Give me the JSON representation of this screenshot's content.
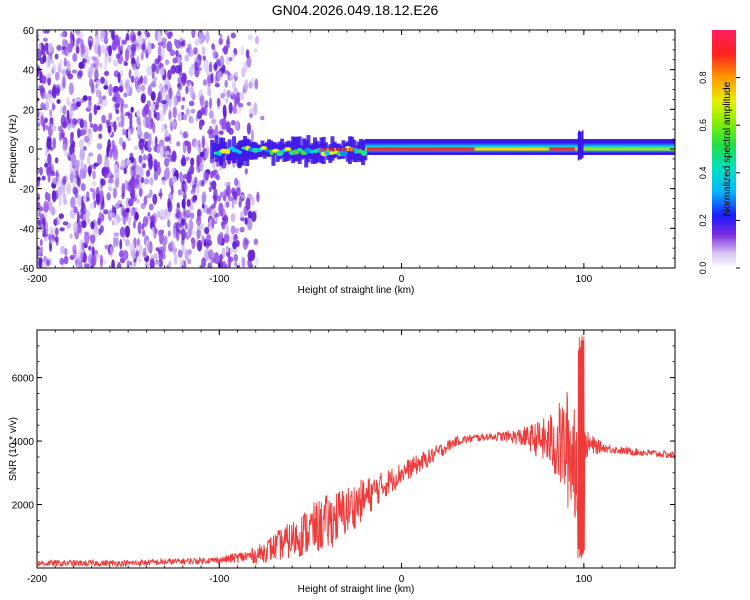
{
  "title": "GN04.2026.049.18.12.E26",
  "colors": {
    "snr_line": "#ef3a3a",
    "axis": "#000000",
    "background": "#ffffff"
  },
  "chart_data": [
    {
      "type": "heatmap",
      "name": "spectrogram",
      "xlabel": "Height of straight line (km)",
      "ylabel": "Frequency (Hz)",
      "xlim": [
        -200,
        150
      ],
      "ylim": [
        -60,
        60
      ],
      "xticks": [
        "-200",
        "-100",
        "0",
        "100"
      ],
      "xtick_values": [
        -200,
        -100,
        0,
        100
      ],
      "yticks": [
        "60",
        "40",
        "20",
        "0",
        "-20",
        "-40",
        "-60"
      ],
      "ytick_values": [
        60,
        40,
        20,
        0,
        -20,
        -40,
        -60
      ],
      "colorbar": {
        "label": "Normalized spectral amplitude",
        "range": [
          0,
          1
        ],
        "ticks": [
          "0.0",
          "0.2",
          "0.4",
          "0.6",
          "0.8"
        ],
        "tick_values": [
          0.0,
          0.2,
          0.4,
          0.6,
          0.8
        ]
      },
      "regions": [
        {
          "description_x": [
            -200,
            -75
          ],
          "frequency": [
            -60,
            60
          ],
          "amplitude": [
            0.0,
            0.15
          ],
          "kind": "noise"
        },
        {
          "description_x": [
            -105,
            -20
          ],
          "frequency": [
            -5,
            3
          ],
          "amplitude": [
            0.2,
            0.6
          ],
          "kind": "signal"
        },
        {
          "description_x": [
            -20,
            150
          ],
          "frequency": [
            -2,
            2
          ],
          "amplitude": [
            0.6,
            1.0
          ],
          "kind": "signal"
        }
      ]
    },
    {
      "type": "line",
      "name": "snr",
      "xlabel": "Height of straight line (km)",
      "ylabel": "SNR (10 * v/v)",
      "xlim": [
        -200,
        150
      ],
      "ylim": [
        0,
        7500
      ],
      "xticks": [
        "-200",
        "-100",
        "0",
        "100"
      ],
      "xtick_values": [
        -200,
        -100,
        0,
        100
      ],
      "yticks": [
        "2000",
        "4000",
        "6000"
      ],
      "ytick_values": [
        2000,
        4000,
        6000
      ],
      "series": [
        {
          "name": "SNR",
          "x": [
            -200,
            -150,
            -100,
            -80,
            -70,
            -60,
            -50,
            -40,
            -30,
            -20,
            -10,
            0,
            10,
            20,
            30,
            40,
            50,
            60,
            70,
            80,
            85,
            90,
            95,
            100,
            110,
            120,
            130,
            140,
            150
          ],
          "y": [
            150,
            150,
            250,
            400,
            650,
            900,
            1200,
            1450,
            1800,
            2200,
            2600,
            3000,
            3300,
            3650,
            4000,
            4100,
            4150,
            4150,
            4100,
            4000,
            3900,
            3800,
            3600,
            3900,
            3800,
            3700,
            3650,
            3600,
            3550
          ],
          "amplitude": [
            100,
            100,
            100,
            250,
            450,
            600,
            800,
            900,
            800,
            650,
            450,
            350,
            300,
            250,
            150,
            120,
            120,
            200,
            400,
            800,
            1200,
            1800,
            2400,
            500,
            150,
            120,
            120,
            120,
            120
          ]
        }
      ]
    }
  ]
}
